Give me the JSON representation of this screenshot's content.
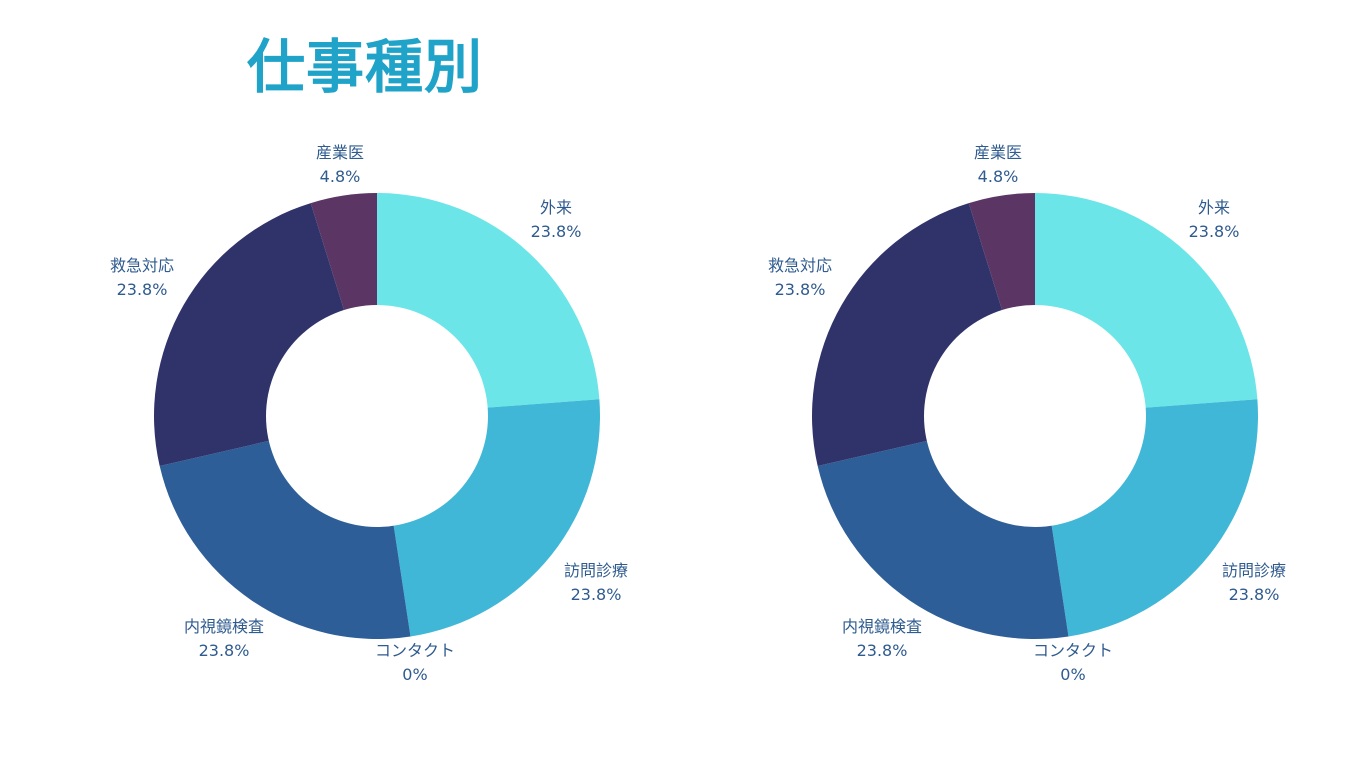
{
  "page": {
    "title": "仕事種別"
  },
  "colors": {
    "title": "#1fa3c8",
    "label": "#2f5b8f",
    "hole": "#ffffff"
  },
  "chart_data": [
    {
      "type": "pie",
      "style": "donut",
      "categories": [
        "外来",
        "訪問診療",
        "コンタクト",
        "内視鏡検査",
        "救急対応",
        "産業医"
      ],
      "values": [
        23.8,
        23.8,
        0,
        23.8,
        23.8,
        4.8
      ],
      "value_labels": [
        "23.8%",
        "23.8%",
        "0%",
        "23.8%",
        "23.8%",
        "4.8%"
      ],
      "colors": [
        "#6ce5e8",
        "#41b7d7",
        "#3a7fba",
        "#2e5e98",
        "#2f336a",
        "#5b3665"
      ],
      "start": "12 o'clock, clockwise",
      "legend": "none (labels beside slices)"
    },
    {
      "type": "pie",
      "style": "donut",
      "categories": [
        "外来",
        "訪問診療",
        "コンタクト",
        "内視鏡検査",
        "救急対応",
        "産業医"
      ],
      "values": [
        23.8,
        23.8,
        0,
        23.8,
        23.8,
        4.8
      ],
      "value_labels": [
        "23.8%",
        "23.8%",
        "0%",
        "23.8%",
        "23.8%",
        "4.8%"
      ],
      "colors": [
        "#6ce5e8",
        "#41b7d7",
        "#3a7fba",
        "#2e5e98",
        "#2f336a",
        "#5b3665"
      ],
      "start": "12 o'clock, clockwise",
      "legend": "none (labels beside slices)"
    }
  ]
}
